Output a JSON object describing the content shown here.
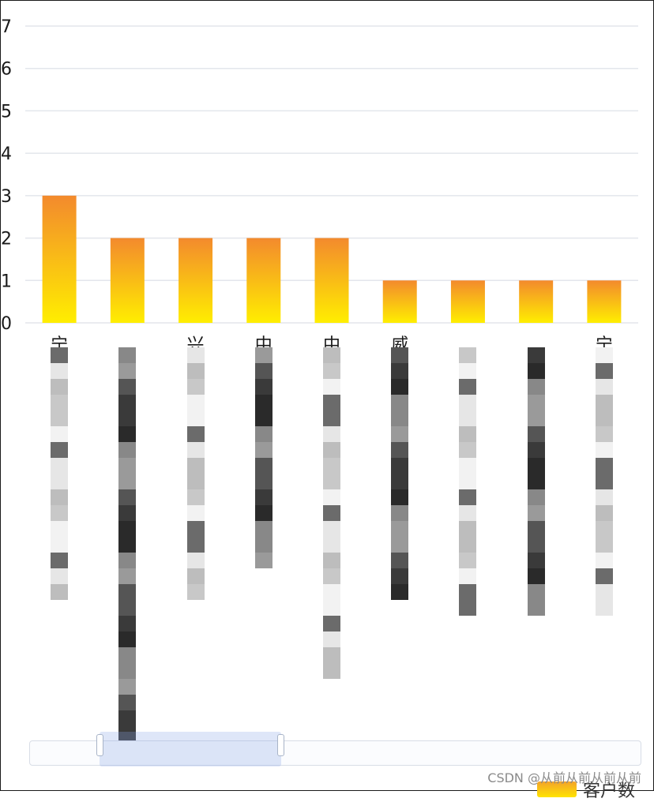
{
  "chart_data": {
    "type": "bar",
    "title": "",
    "xlabel": "",
    "ylabel": "",
    "ylim": [
      0,
      7
    ],
    "yticks": [
      0,
      1,
      2,
      3,
      4,
      5,
      6,
      7
    ],
    "grid": true,
    "categories": [
      "宁",
      "",
      "兴",
      "中",
      "中",
      "威",
      "",
      "",
      "宁"
    ],
    "series": [
      {
        "name": "客户数",
        "values": [
          3,
          2,
          2,
          2,
          2,
          1,
          1,
          1,
          1
        ]
      }
    ],
    "colors": {
      "bar_top": "#f38a2d",
      "bar_bottom": "#ffee00",
      "grid": "#e3e6ec"
    },
    "legend_position": "bottom-right"
  },
  "watermark": "CSDN @从前从前从前从前",
  "legend_label": "客户数",
  "datazoom": {
    "label": "datazoom-slider"
  }
}
